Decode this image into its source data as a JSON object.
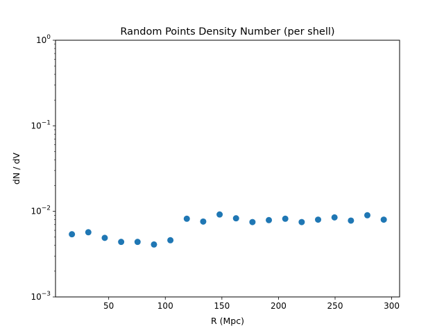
{
  "chart_data": {
    "type": "scatter",
    "title": "Random Points Density Number (per shell)",
    "xlabel": "R (Mpc)",
    "ylabel": "dN / dV",
    "xlim": [
      3,
      307
    ],
    "ylim": [
      0.001,
      1
    ],
    "yscale": "log",
    "grid": false,
    "legend": "none",
    "x_ticks": [
      50,
      100,
      150,
      200,
      250,
      300
    ],
    "y_ticks": [
      {
        "value": 0.001,
        "base": "10",
        "exp": "−3"
      },
      {
        "value": 0.01,
        "base": "10",
        "exp": "−2"
      },
      {
        "value": 0.1,
        "base": "10",
        "exp": "−1"
      },
      {
        "value": 1,
        "base": "10",
        "exp": "0"
      }
    ],
    "color": "#1f77b4",
    "points": [
      {
        "x": 17.5,
        "y": 0.0054
      },
      {
        "x": 32.0,
        "y": 0.0057
      },
      {
        "x": 46.5,
        "y": 0.0049
      },
      {
        "x": 61.0,
        "y": 0.0044
      },
      {
        "x": 75.5,
        "y": 0.0044
      },
      {
        "x": 90.0,
        "y": 0.0041
      },
      {
        "x": 104.5,
        "y": 0.0046
      },
      {
        "x": 119.0,
        "y": 0.0082
      },
      {
        "x": 133.5,
        "y": 0.0076
      },
      {
        "x": 148.0,
        "y": 0.0092
      },
      {
        "x": 162.5,
        "y": 0.0083
      },
      {
        "x": 177.0,
        "y": 0.0075
      },
      {
        "x": 191.5,
        "y": 0.0079
      },
      {
        "x": 206.0,
        "y": 0.0082
      },
      {
        "x": 220.5,
        "y": 0.0075
      },
      {
        "x": 235.0,
        "y": 0.008
      },
      {
        "x": 249.5,
        "y": 0.0085
      },
      {
        "x": 264.0,
        "y": 0.0078
      },
      {
        "x": 278.5,
        "y": 0.009
      },
      {
        "x": 293.0,
        "y": 0.008
      }
    ]
  }
}
